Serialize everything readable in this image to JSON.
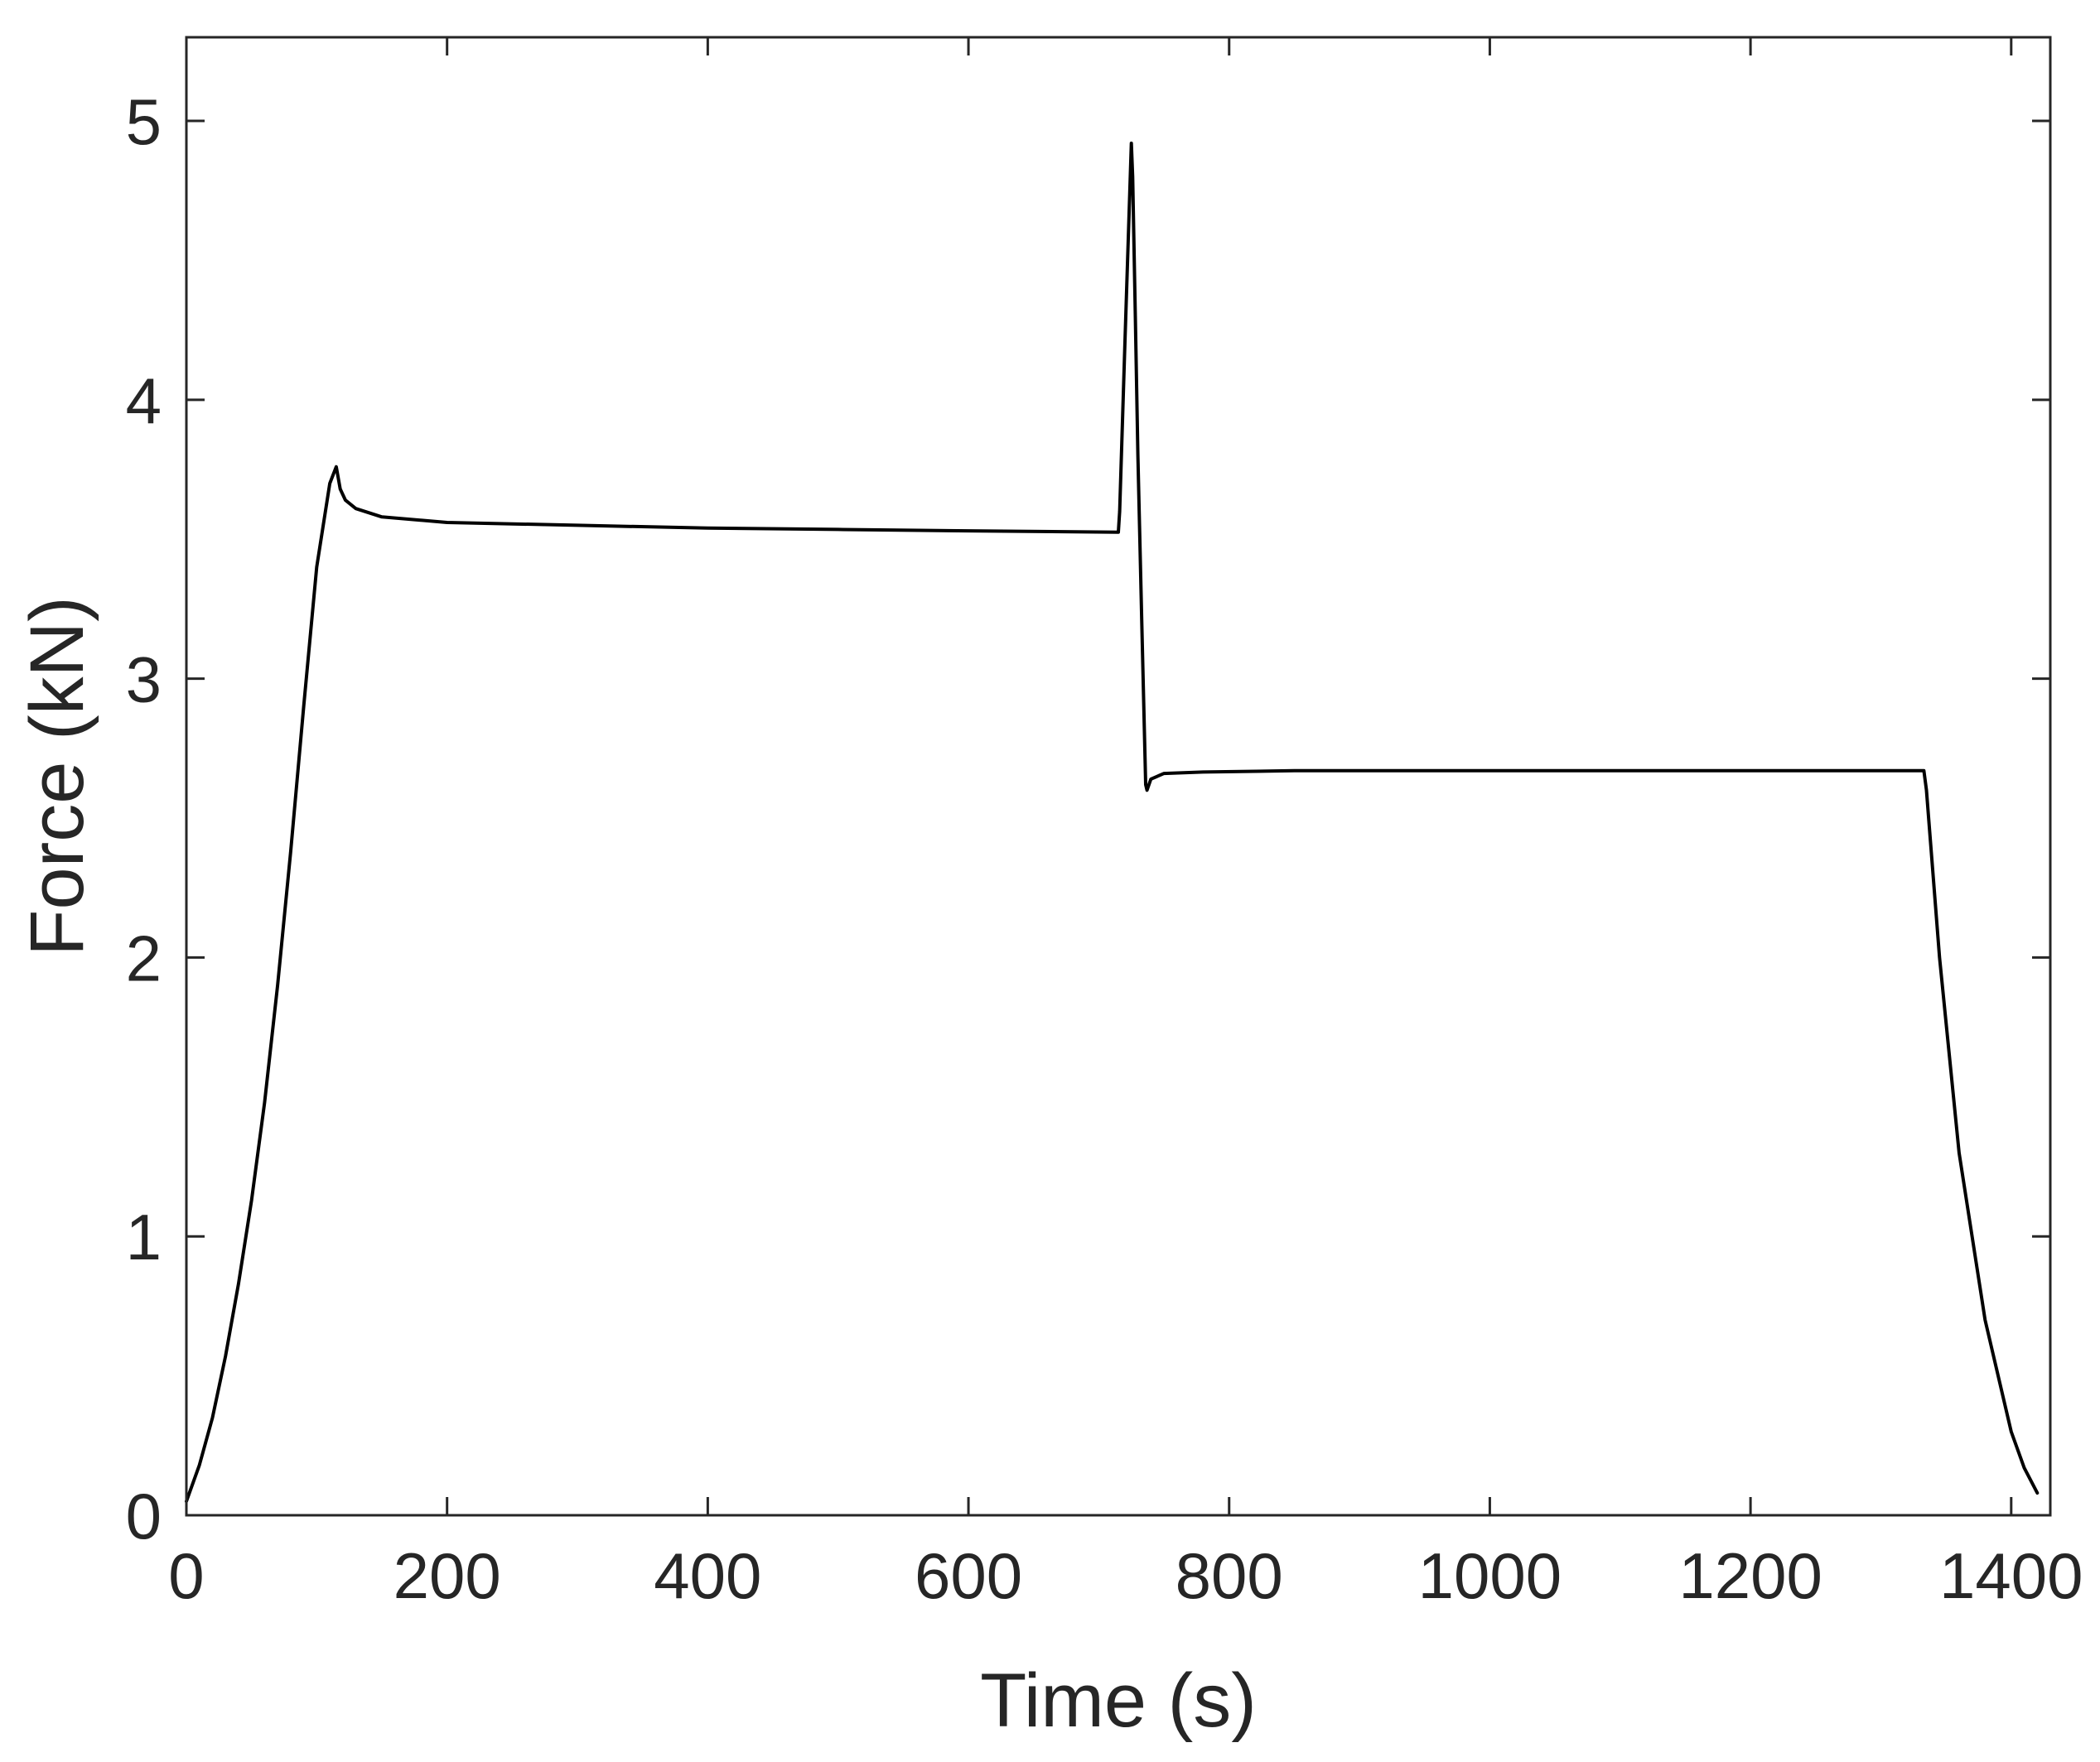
{
  "chart_data": {
    "type": "line",
    "title": "",
    "xlabel": "Time (s)",
    "ylabel": "Force (kN)",
    "xlim": [
      0,
      1430
    ],
    "ylim": [
      0,
      5.3
    ],
    "xticks": [
      0,
      200,
      400,
      600,
      800,
      1000,
      1200,
      1400
    ],
    "yticks": [
      0,
      1,
      2,
      3,
      4,
      5
    ],
    "xtick_labels": [
      "0",
      "200",
      "400",
      "600",
      "800",
      "1000",
      "1200",
      "1400"
    ],
    "ytick_labels": [
      "0",
      "1",
      "2",
      "3",
      "4",
      "5"
    ],
    "grid": false,
    "box": true,
    "colors": {
      "line": "#000000",
      "axes": "#262626"
    },
    "series": [
      {
        "x": [
          0,
          10,
          20,
          30,
          40,
          50,
          60,
          70,
          80,
          90,
          100,
          110,
          115,
          118,
          122,
          130,
          150,
          200,
          300,
          400,
          500,
          600,
          715,
          716,
          720,
          725,
          726,
          728,
          730,
          733,
          736,
          737,
          740,
          750,
          780,
          850,
          1000,
          1200,
          1333,
          1335,
          1345,
          1360,
          1380,
          1400,
          1410,
          1420
        ],
        "y": [
          0.05,
          0.18,
          0.35,
          0.57,
          0.83,
          1.13,
          1.48,
          1.9,
          2.38,
          2.9,
          3.4,
          3.7,
          3.76,
          3.68,
          3.64,
          3.61,
          3.58,
          3.56,
          3.55,
          3.54,
          3.535,
          3.53,
          3.525,
          3.6,
          4.2,
          4.92,
          4.8,
          4.3,
          3.8,
          3.2,
          2.62,
          2.6,
          2.64,
          2.66,
          2.665,
          2.67,
          2.67,
          2.67,
          2.67,
          2.6,
          2.0,
          1.3,
          0.7,
          0.3,
          0.17,
          0.08
        ]
      }
    ]
  }
}
